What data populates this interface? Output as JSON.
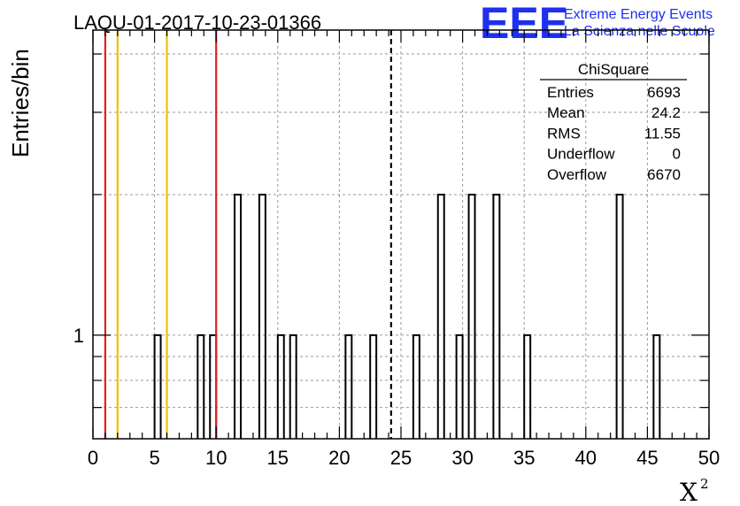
{
  "chart_data": {
    "type": "histogram",
    "title": "LAQU-01-2017-10-23-01366",
    "ylabel": "Entries/bin",
    "xlabel": "X",
    "xlabel_superscript": "2",
    "xlim": [
      0,
      50
    ],
    "ylim_log": [
      0.6,
      4.5
    ],
    "log_y": true,
    "grid": true,
    "x_ticks": [
      "0",
      "5",
      "10",
      "15",
      "20",
      "25",
      "30",
      "35",
      "40",
      "45",
      "50"
    ],
    "y_ticks": [
      "1"
    ],
    "bin_width": 0.5,
    "bins": [
      {
        "x": 5,
        "y": 1
      },
      {
        "x": 8.5,
        "y": 1
      },
      {
        "x": 9.5,
        "y": 1
      },
      {
        "x": 11.5,
        "y": 2
      },
      {
        "x": 13.5,
        "y": 2
      },
      {
        "x": 15,
        "y": 1
      },
      {
        "x": 16,
        "y": 1
      },
      {
        "x": 20.5,
        "y": 1
      },
      {
        "x": 22.5,
        "y": 1
      },
      {
        "x": 26,
        "y": 1
      },
      {
        "x": 28,
        "y": 2
      },
      {
        "x": 29.5,
        "y": 1
      },
      {
        "x": 30.5,
        "y": 2
      },
      {
        "x": 32.5,
        "y": 2
      },
      {
        "x": 35,
        "y": 1
      },
      {
        "x": 42.5,
        "y": 2
      },
      {
        "x": 45.5,
        "y": 1
      }
    ],
    "vertical_lines": [
      {
        "x": 1.0,
        "color": "#e02020",
        "style": "solid"
      },
      {
        "x": 2.0,
        "color": "#f0c000",
        "style": "solid"
      },
      {
        "x": 6.0,
        "color": "#f0c000",
        "style": "solid"
      },
      {
        "x": 10.0,
        "color": "#e02020",
        "style": "solid"
      },
      {
        "x": 24.2,
        "color": "#000000",
        "style": "dashed"
      }
    ],
    "stats_box": {
      "name": "ChiSquare",
      "rows": [
        {
          "label": "Entries",
          "value": "6693"
        },
        {
          "label": "Mean",
          "value": "24.2"
        },
        {
          "label": "RMS",
          "value": "11.55"
        },
        {
          "label": "Underflow",
          "value": "0"
        },
        {
          "label": "Overflow",
          "value": "6670"
        }
      ]
    }
  },
  "logo": {
    "mark": "EEE",
    "line1": "Extreme Energy Events",
    "line2": "La Scienza nelle Scuole",
    "color": "#1f2ff0"
  }
}
